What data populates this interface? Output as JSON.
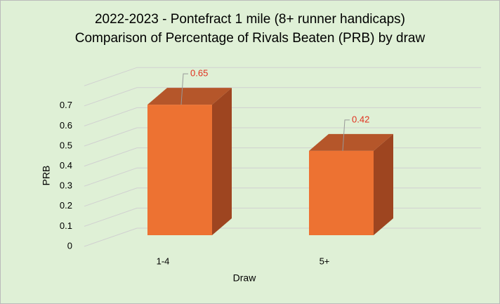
{
  "chart_data": {
    "type": "bar3d",
    "title": "2022-2023 - Pontefract 1 mile (8+ runner handicaps)",
    "subtitle": "Comparison of Percentage of Rivals Beaten (PRB) by draw",
    "x_label": "Draw",
    "y_label": "PRB",
    "categories": [
      "1-4",
      "5+"
    ],
    "values": [
      0.65,
      0.42
    ],
    "color": "#ed7232",
    "ylim": [
      0,
      0.8
    ],
    "yticks": [
      0,
      0.1,
      0.2,
      0.3,
      0.4,
      0.5,
      0.6,
      0.7
    ],
    "grid": true
  }
}
